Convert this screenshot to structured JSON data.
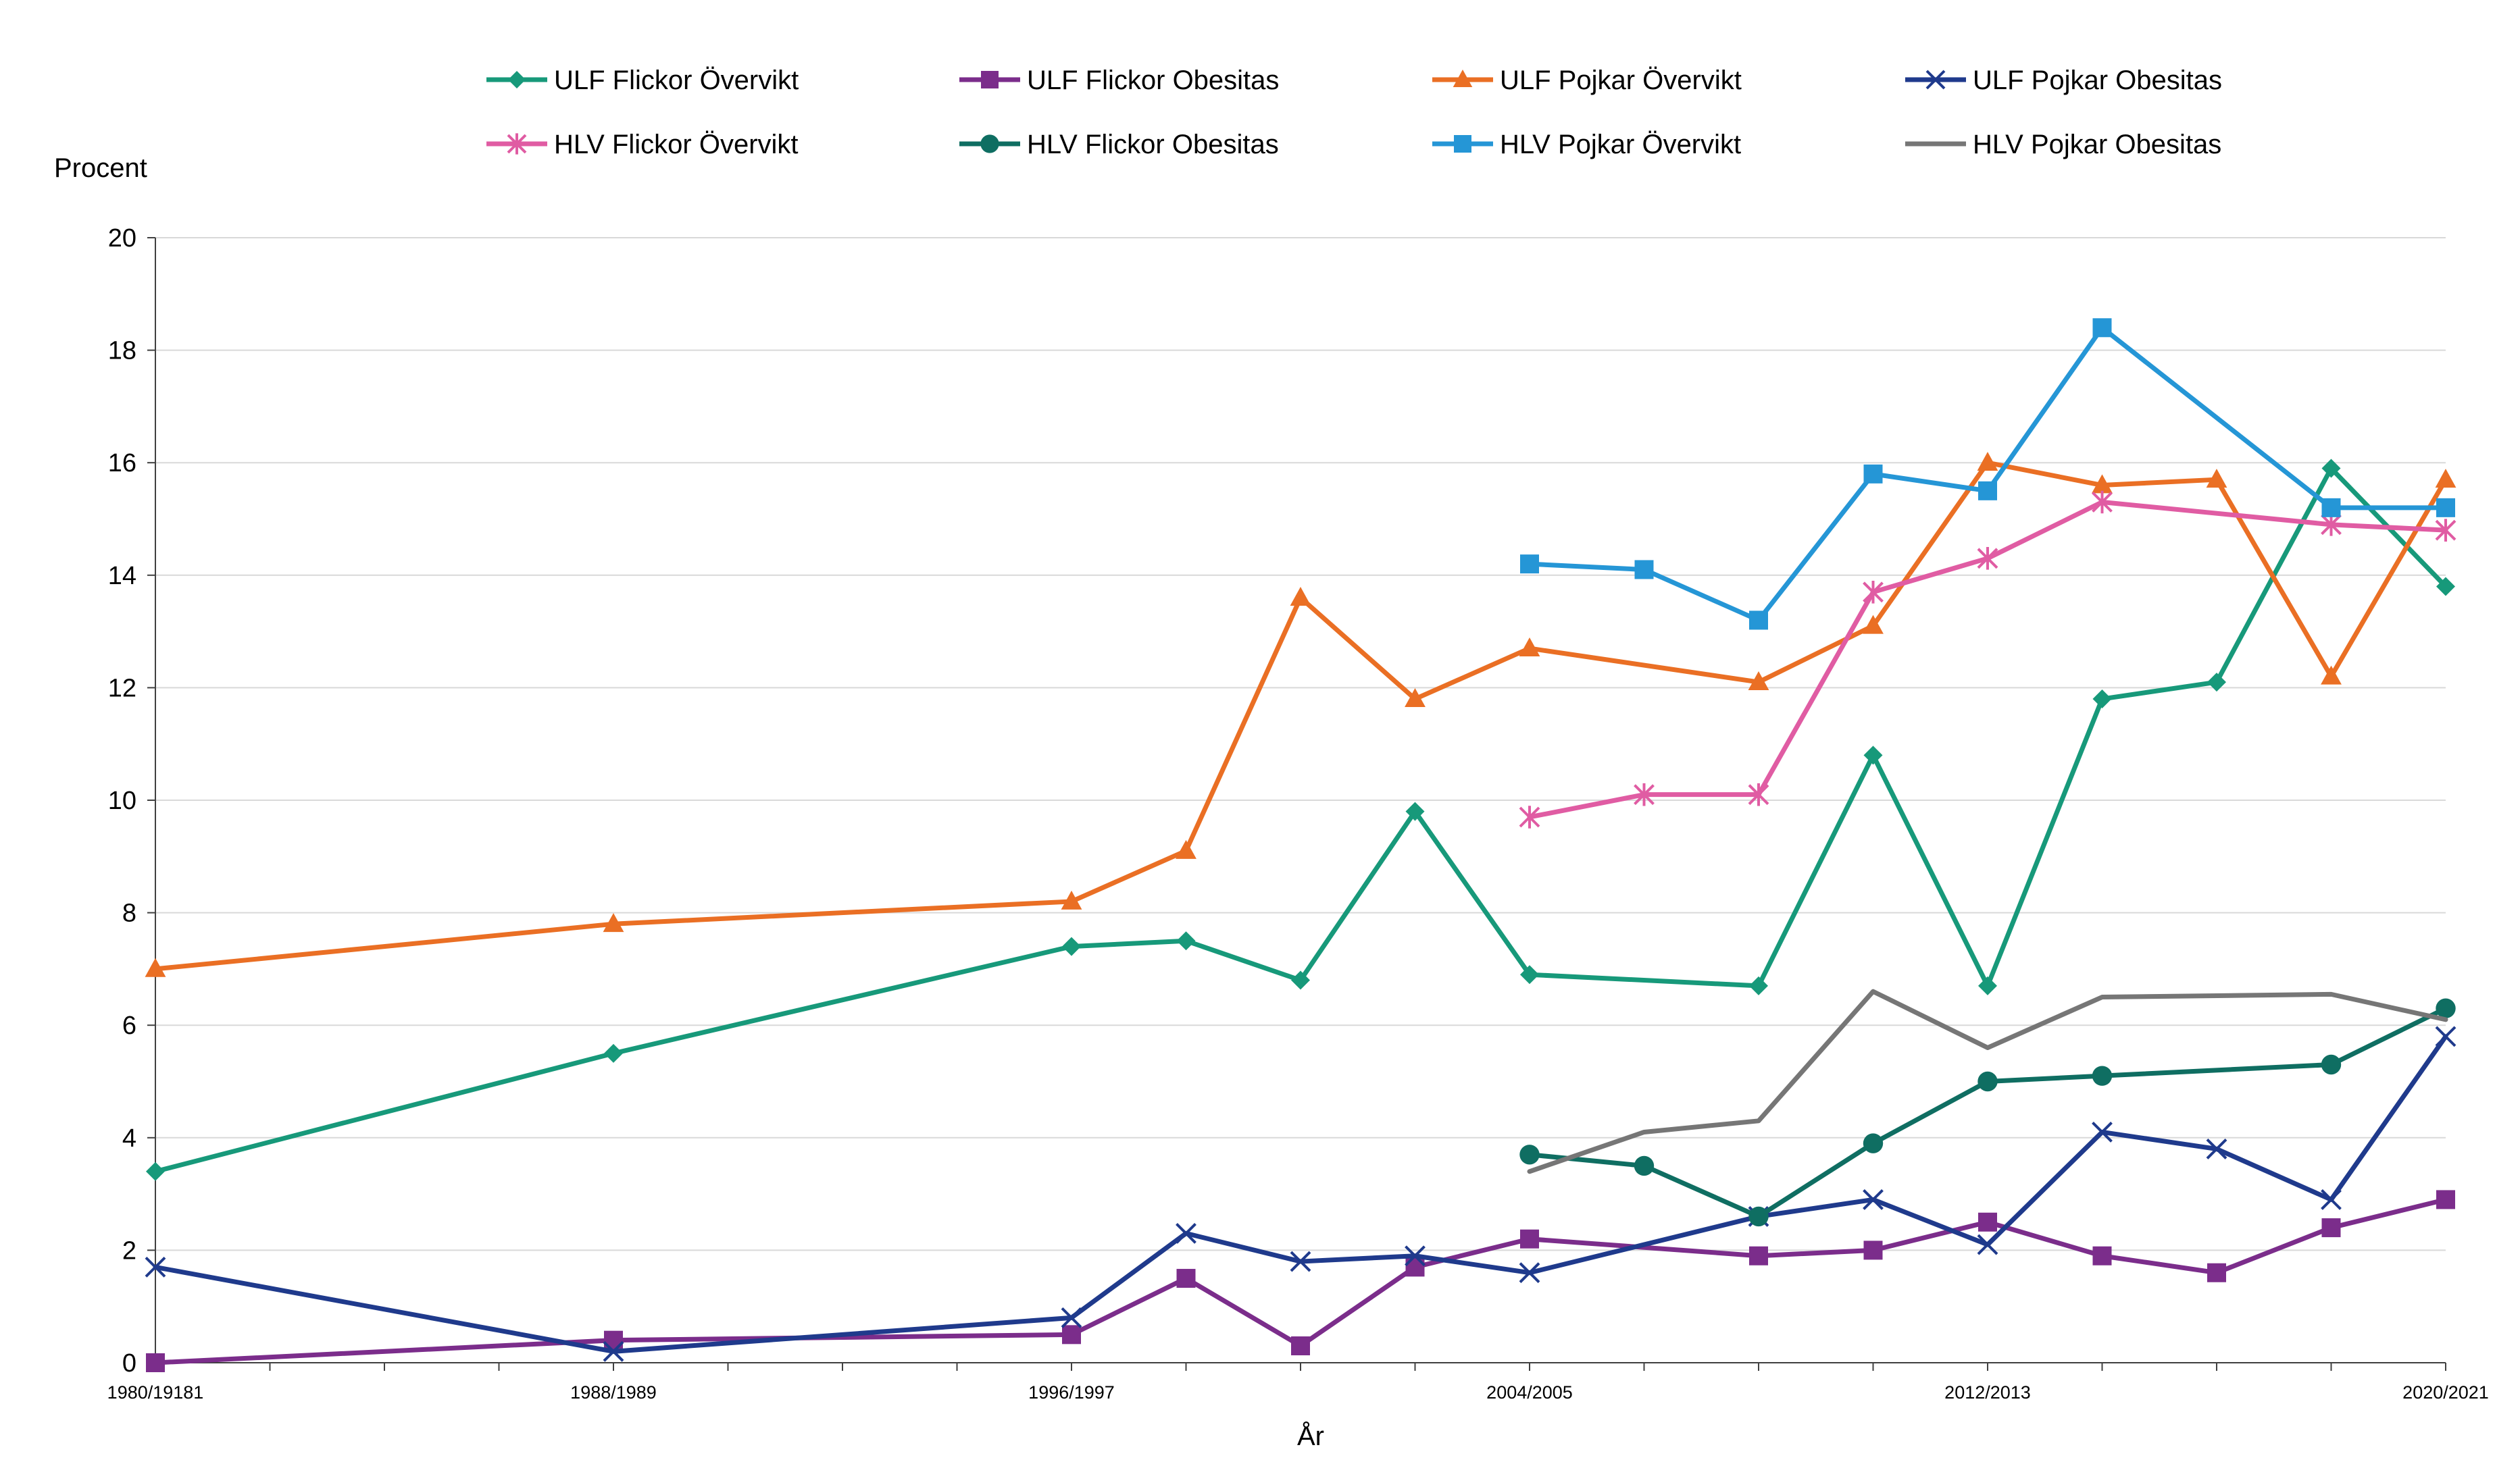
{
  "chart_data": {
    "type": "line",
    "ylabel": "Procent",
    "xlabel": "År",
    "ylim": [
      0,
      20
    ],
    "yticks": [
      0,
      2,
      4,
      6,
      8,
      10,
      12,
      14,
      16,
      18,
      20
    ],
    "grid": true,
    "legend_position": "top",
    "x_tick_labels": [
      {
        "x": 0,
        "label": "1980/19181"
      },
      {
        "x": 8,
        "label": "1988/1989"
      },
      {
        "x": 16,
        "label": "1996/1997"
      },
      {
        "x": 24,
        "label": "2004/2005"
      },
      {
        "x": 32,
        "label": "2012/2013"
      },
      {
        "x": 40,
        "label": "2020/2021"
      }
    ],
    "series": [
      {
        "name": "ULF Flickor Övervikt",
        "color": "#17997a",
        "marker": "diamond",
        "points": [
          [
            0,
            3.4
          ],
          [
            8,
            5.5
          ],
          [
            16,
            7.4
          ],
          [
            18,
            7.5
          ],
          [
            20,
            6.8
          ],
          [
            22,
            9.8
          ],
          [
            24,
            6.9
          ],
          [
            28,
            6.7
          ],
          [
            30,
            10.8
          ],
          [
            32,
            6.7
          ],
          [
            34,
            11.8
          ],
          [
            36,
            12.1
          ],
          [
            38,
            15.9
          ],
          [
            40,
            13.8
          ]
        ]
      },
      {
        "name": "ULF Flickor Obesitas",
        "color": "#7b2d8b",
        "marker": "square",
        "points": [
          [
            0,
            0.0
          ],
          [
            8,
            0.4
          ],
          [
            16,
            0.5
          ],
          [
            18,
            1.5
          ],
          [
            20,
            0.3
          ],
          [
            22,
            1.7
          ],
          [
            24,
            2.2
          ],
          [
            28,
            1.9
          ],
          [
            30,
            2.0
          ],
          [
            32,
            2.5
          ],
          [
            34,
            1.9
          ],
          [
            36,
            1.6
          ],
          [
            38,
            2.4
          ],
          [
            40,
            2.9
          ]
        ]
      },
      {
        "name": "ULF Pojkar Övervikt",
        "color": "#ea6f24",
        "marker": "triangle",
        "points": [
          [
            0,
            7.0
          ],
          [
            8,
            7.8
          ],
          [
            16,
            8.2
          ],
          [
            18,
            9.1
          ],
          [
            20,
            13.6
          ],
          [
            22,
            11.8
          ],
          [
            24,
            12.7
          ],
          [
            28,
            12.1
          ],
          [
            30,
            13.1
          ],
          [
            32,
            16.0
          ],
          [
            34,
            15.6
          ],
          [
            36,
            15.7
          ],
          [
            38,
            12.2
          ],
          [
            40,
            15.7
          ]
        ]
      },
      {
        "name": "ULF Pojkar Obesitas",
        "color": "#1f3a8c",
        "marker": "x",
        "points": [
          [
            0,
            1.7
          ],
          [
            8,
            0.2
          ],
          [
            16,
            0.8
          ],
          [
            18,
            2.3
          ],
          [
            20,
            1.8
          ],
          [
            22,
            1.9
          ],
          [
            24,
            1.6
          ],
          [
            28,
            2.6
          ],
          [
            30,
            2.9
          ],
          [
            32,
            2.1
          ],
          [
            34,
            4.1
          ],
          [
            36,
            3.8
          ],
          [
            38,
            2.9
          ],
          [
            40,
            5.8
          ]
        ]
      },
      {
        "name": "HLV Flickor Övervikt",
        "color": "#e05ca3",
        "marker": "star",
        "points": [
          [
            24,
            9.7
          ],
          [
            26,
            10.1
          ],
          [
            28,
            10.1
          ],
          [
            30,
            13.7
          ],
          [
            32,
            14.3
          ],
          [
            34,
            15.3
          ],
          [
            38,
            14.9
          ],
          [
            40,
            14.8
          ]
        ]
      },
      {
        "name": "HLV Flickor Obesitas",
        "color": "#0f6e62",
        "marker": "circle",
        "points": [
          [
            24,
            3.7
          ],
          [
            26,
            3.5
          ],
          [
            28,
            2.6
          ],
          [
            30,
            3.9
          ],
          [
            32,
            5.0
          ],
          [
            34,
            5.1
          ],
          [
            38,
            5.3
          ],
          [
            40,
            6.3
          ]
        ]
      },
      {
        "name": "HLV Pojkar Övervikt",
        "color": "#2596d6",
        "marker": "square",
        "points": [
          [
            24,
            14.2
          ],
          [
            26,
            14.1
          ],
          [
            28,
            13.2
          ],
          [
            30,
            15.8
          ],
          [
            32,
            15.5
          ],
          [
            34,
            18.4
          ],
          [
            38,
            15.2
          ],
          [
            40,
            15.2
          ]
        ]
      },
      {
        "name": "HLV Pojkar Obesitas",
        "color": "#767676",
        "marker": "none",
        "points": [
          [
            24,
            3.4
          ],
          [
            26,
            4.1
          ],
          [
            28,
            4.3
          ],
          [
            30,
            6.6
          ],
          [
            32,
            5.6
          ],
          [
            34,
            6.5
          ],
          [
            38,
            6.55
          ],
          [
            40,
            6.1
          ]
        ]
      }
    ]
  }
}
